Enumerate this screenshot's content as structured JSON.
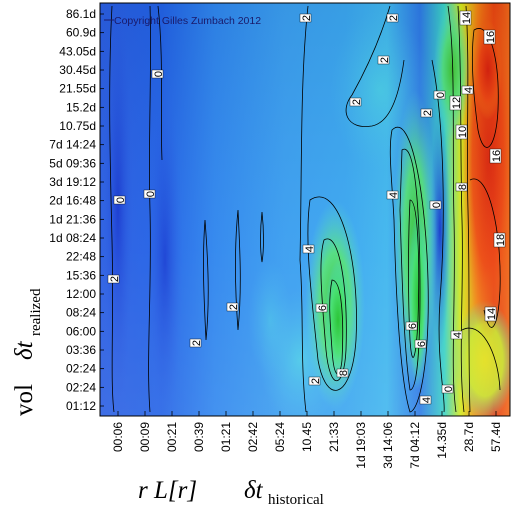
{
  "chart_data": {
    "type": "heatmap",
    "copyright": "Copyright Gilles Zumbach 2012",
    "xlabel": {
      "prefix": "r L[r]",
      "symbol": "δt",
      "subscript": "historical"
    },
    "ylabel": {
      "prefix": "vol",
      "symbol": "δt",
      "subscript": "realized"
    },
    "x_ticks": [
      "00:06",
      "00:09",
      "00:21",
      "00:39",
      "01:21",
      "02:42",
      "05:24",
      "10.45",
      "21:33",
      "1d 19:03",
      "3d 14:06",
      "7d 04:12",
      "14.35d",
      "28.7d",
      "57.4d"
    ],
    "y_ticks": [
      "86.1d",
      "60.9d",
      "43.05d",
      "30.45d",
      "21.55d",
      "15.2d",
      "10.75d",
      "7d 14:24",
      "5d 09:36",
      "3d 19:12",
      "2d 16:48",
      "1d 21:36",
      "1d 08:24",
      "22:48",
      "15:36",
      "12:00",
      "08:24",
      "06:00",
      "03:36",
      "02:24",
      "02:24",
      "01:12"
    ],
    "contour_labels": [
      "2",
      "0",
      "2",
      "0",
      "2",
      "4",
      "2",
      "6",
      "8",
      "2",
      "2",
      "4",
      "2",
      "6",
      "6",
      "4",
      "0",
      "0",
      "4",
      "2",
      "14",
      "16",
      "12",
      "10",
      "8",
      "16",
      "18",
      "14",
      "4",
      "0",
      "2",
      "0"
    ],
    "colorscale": [
      "#1a3ad6",
      "#2a78f0",
      "#3ab2ee",
      "#4bd9e0",
      "#3fe08c",
      "#1fc02a",
      "#c8ec1c",
      "#f2c21a",
      "#f06a14",
      "#e22810"
    ],
    "grid": false
  }
}
